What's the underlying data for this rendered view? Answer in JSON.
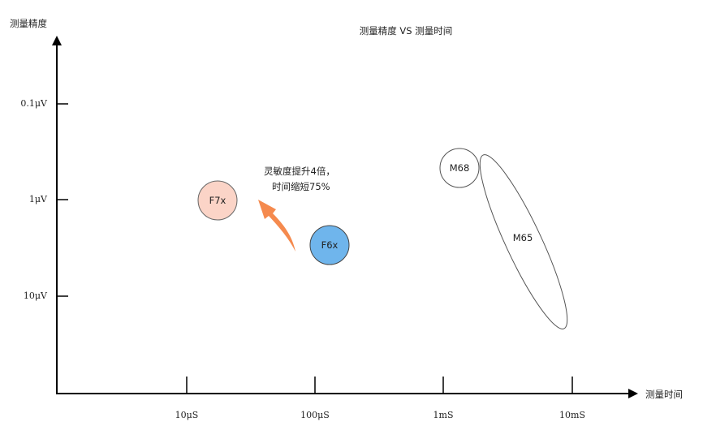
{
  "title": "测量精度 VS 测量时间",
  "y_axis": {
    "label": "测量精度",
    "ticks": [
      "0.1μV",
      "1μV",
      "10μV"
    ]
  },
  "x_axis": {
    "label": "测量时间",
    "ticks": [
      "10μS",
      "100μS",
      "1mS",
      "10mS"
    ]
  },
  "nodes": {
    "f7x": {
      "label": "F7x",
      "fill": "#fbd4c7"
    },
    "f6x": {
      "label": "F6x",
      "fill": "#6fb5ec"
    },
    "m68": {
      "label": "M68",
      "fill": "#ffffff"
    },
    "m65": {
      "label": "M65"
    }
  },
  "annotation": {
    "line1": "灵敏度提升4倍，",
    "line2": "时间缩短75%",
    "arrow_color": "#f58a4e"
  }
}
